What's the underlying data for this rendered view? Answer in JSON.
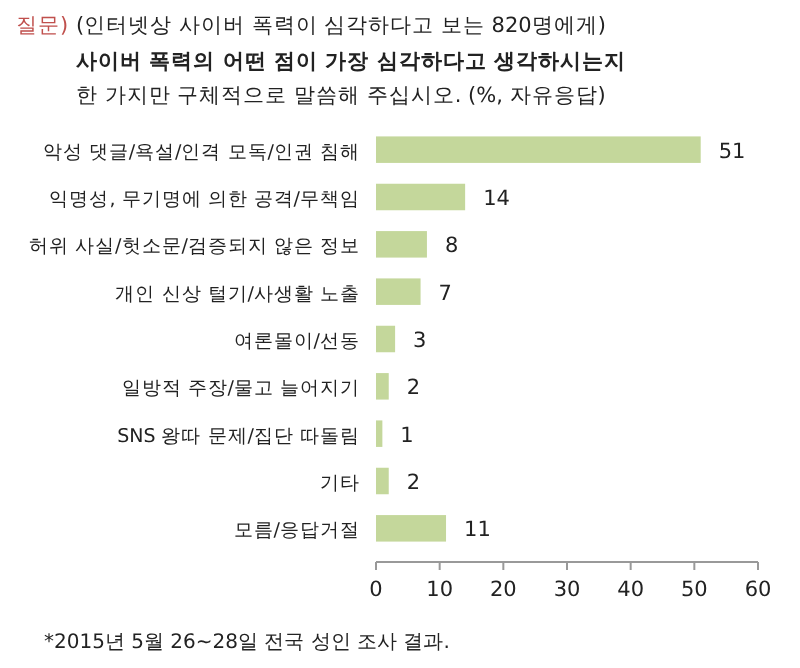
{
  "chart_data": {
    "type": "bar",
    "orientation": "horizontal",
    "subtitle": "(인터넷상 사이버 폭력이 심각하다고 보는 820명에게)",
    "title": "사이버 폭력의 어떤 점이 가장 심각하다고 생각하시는지\n한 가지만 구체적으로 말씀해 주십시오. (%, 자유응답)",
    "annotations": [
      "질문)",
      "*2015년 5월 26~28일 전국 성인 조사 결과."
    ],
    "categories": [
      "악성 댓글/욕설/인격 모독/인권 침해",
      "익명성, 무기명에 의한 공격/무책임",
      "허위 사실/헛소문/검증되지 않은 정보",
      "개인 신상 털기/사생활 노출",
      "여론몰이/선동",
      "일방적 주장/물고 늘어지기",
      "SNS 왕따 문제/집단 따돌림",
      "기타",
      "모름/응답거절"
    ],
    "values": [
      51,
      14,
      8,
      7,
      3,
      2,
      1,
      2,
      11
    ],
    "color": "#c4d79b",
    "data_labels": true,
    "xlim": [
      0,
      60
    ],
    "xticks": [
      0,
      10,
      20,
      30,
      40,
      50,
      60
    ]
  }
}
